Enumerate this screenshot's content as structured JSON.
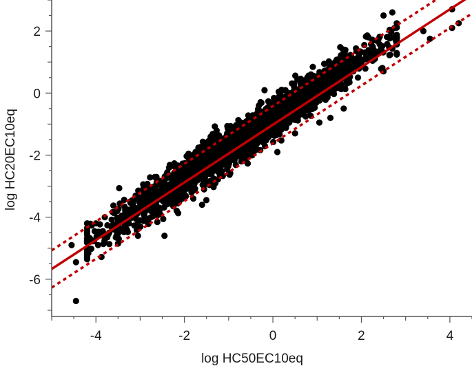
{
  "chart_data": {
    "type": "scatter",
    "title": "",
    "xlabel": "log HC50EC10eq",
    "ylabel": "log HC20EC10eq",
    "xlim": [
      -5,
      4.5
    ],
    "ylim": [
      -7.2,
      3
    ],
    "x_ticks": [
      "-4",
      "-2",
      "0",
      "2",
      "4"
    ],
    "y_ticks": [
      "-6",
      "-4",
      "-2",
      "0",
      "2"
    ],
    "grid": false,
    "legend": "none",
    "colors": {
      "points": "#000000",
      "fit_line": "#c00000",
      "bands": "#c00000",
      "axes": "#555555"
    },
    "fit_line": {
      "slope": 0.93,
      "intercept": -1.02
    },
    "prediction_band_offset": 0.6,
    "cloud": {
      "x_range": [
        -4.2,
        2.8
      ],
      "slope": 0.96,
      "intercept": -0.8,
      "spread": 0.3,
      "count": 2600
    },
    "outliers": [
      {
        "x": -4.55,
        "y": -4.9
      },
      {
        "x": -4.45,
        "y": -5.45
      },
      {
        "x": -4.45,
        "y": -6.7
      },
      {
        "x": -4.0,
        "y": -4.2
      },
      {
        "x": -3.95,
        "y": -4.9
      },
      {
        "x": -3.8,
        "y": -4.0
      },
      {
        "x": -3.7,
        "y": -4.5
      },
      {
        "x": -3.6,
        "y": -4.35
      },
      {
        "x": -3.55,
        "y": -4.65
      },
      {
        "x": -3.5,
        "y": -4.85
      },
      {
        "x": -3.3,
        "y": -4.4
      },
      {
        "x": -3.05,
        "y": -4.6
      },
      {
        "x": -2.45,
        "y": -4.6
      },
      {
        "x": -2.55,
        "y": -3.9
      },
      {
        "x": -2.25,
        "y": -3.65
      },
      {
        "x": -2.0,
        "y": -3.3
      },
      {
        "x": -1.8,
        "y": -3.4
      },
      {
        "x": -1.6,
        "y": -3.6
      },
      {
        "x": -1.3,
        "y": -2.9
      },
      {
        "x": -1.0,
        "y": -2.6
      },
      {
        "x": -0.6,
        "y": -2.2
      },
      {
        "x": 0.1,
        "y": -1.9
      },
      {
        "x": 0.5,
        "y": -1.3
      },
      {
        "x": 1.05,
        "y": -0.95
      },
      {
        "x": 1.3,
        "y": -0.8
      },
      {
        "x": 1.6,
        "y": -0.5
      },
      {
        "x": 2.5,
        "y": 0.7
      },
      {
        "x": 2.5,
        "y": 2.5
      },
      {
        "x": 2.7,
        "y": 2.6
      },
      {
        "x": 3.4,
        "y": 2.0
      },
      {
        "x": 3.55,
        "y": 1.75
      },
      {
        "x": 4.05,
        "y": 2.7
      },
      {
        "x": 4.05,
        "y": 2.1
      },
      {
        "x": 4.2,
        "y": 2.25
      }
    ]
  }
}
